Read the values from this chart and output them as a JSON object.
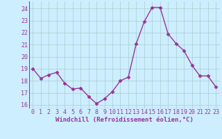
{
  "x": [
    0,
    1,
    2,
    3,
    4,
    5,
    6,
    7,
    8,
    9,
    10,
    11,
    12,
    13,
    14,
    15,
    16,
    17,
    18,
    19,
    20,
    21,
    22,
    23
  ],
  "y": [
    19.0,
    18.2,
    18.5,
    18.7,
    17.8,
    17.3,
    17.4,
    16.7,
    16.1,
    16.5,
    17.1,
    18.0,
    18.3,
    21.1,
    22.9,
    24.1,
    24.1,
    21.9,
    21.1,
    20.5,
    19.3,
    18.4,
    18.4,
    17.5
  ],
  "line_color": "#993399",
  "marker": "D",
  "markersize": 2.5,
  "linewidth": 1.0,
  "xlabel": "Windchill (Refroidissement éolien,°C)",
  "ylabel": "",
  "title": "",
  "xlim": [
    -0.5,
    23.5
  ],
  "ylim": [
    15.7,
    24.6
  ],
  "yticks": [
    16,
    17,
    18,
    19,
    20,
    21,
    22,
    23,
    24
  ],
  "xticks": [
    0,
    1,
    2,
    3,
    4,
    5,
    6,
    7,
    8,
    9,
    10,
    11,
    12,
    13,
    14,
    15,
    16,
    17,
    18,
    19,
    20,
    21,
    22,
    23
  ],
  "background_color": "#cceeff",
  "grid_color": "#aacccc",
  "tick_color": "#993399",
  "label_color": "#993399",
  "xlabel_fontsize": 6.5,
  "tick_fontsize": 6.0
}
